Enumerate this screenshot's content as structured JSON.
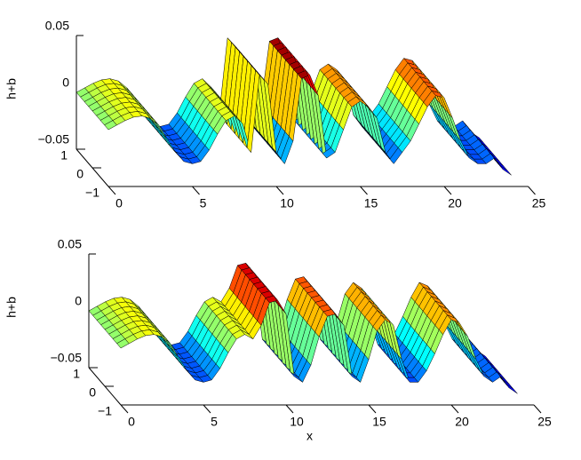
{
  "chart_data": [
    {
      "type": "surface",
      "zlabel": "h+b",
      "colormap": "jet",
      "x": [
        0,
        0.5,
        1,
        1.5,
        2,
        2.5,
        3,
        3.5,
        4,
        4.5,
        5,
        5.5,
        6,
        6.5,
        7,
        7.5,
        8,
        8.5,
        9,
        9.5,
        10,
        10.5,
        11,
        11.5,
        12,
        12.5,
        13,
        13.5,
        14,
        14.5,
        15,
        15.5,
        16,
        16.5,
        17,
        17.5,
        18,
        18.5,
        19,
        19.5,
        20,
        20.5,
        21,
        21.5,
        22,
        22.5,
        23,
        23.5,
        24
      ],
      "values": [
        0,
        0.004,
        0.008,
        0.011,
        0.012,
        0.01,
        0.004,
        -0.008,
        -0.02,
        -0.028,
        -0.03,
        -0.028,
        -0.018,
        -0.004,
        0.008,
        0.012,
        0.005,
        -0.02,
        0.048,
        0.04,
        -0.02,
        -0.03,
        -0.01,
        0.045,
        0.048,
        0.03,
        -0.025,
        -0.02,
        0,
        0.02,
        0.025,
        0.02,
        0.01,
        -0.02,
        -0.03,
        -0.02,
        -0.01,
        0.005,
        0.02,
        0.03,
        0.028,
        0.01,
        -0.01,
        -0.025,
        -0.03,
        -0.03,
        -0.025,
        -0.035,
        -0.04
      ],
      "xlim": [
        0,
        25
      ],
      "ylim": [
        -1,
        1
      ],
      "zlim": [
        -0.05,
        0.05
      ],
      "xticks": [
        0,
        5,
        10,
        15,
        20,
        25
      ],
      "yticks": [
        {
          "value": -1,
          "label": "−1"
        },
        0,
        1
      ],
      "zticks": [
        {
          "value": -0.05,
          "label": "−0.05"
        },
        0,
        0.05
      ]
    },
    {
      "type": "surface",
      "zlabel": "h+b",
      "xlabel": "x",
      "colormap": "jet",
      "x": [
        0,
        0.5,
        1,
        1.5,
        2,
        2.5,
        3,
        3.5,
        4,
        4.5,
        5,
        5.5,
        6,
        6.5,
        7,
        7.5,
        8,
        8.5,
        9,
        9.5,
        10,
        10.5,
        11,
        11.5,
        12,
        12.5,
        13,
        13.5,
        14,
        14.5,
        15,
        15.5,
        16,
        16.5,
        17,
        17.5,
        18,
        18.5,
        19,
        19.5,
        20,
        20.5,
        21,
        21.5,
        22,
        22.5,
        23,
        23.5,
        24
      ],
      "values": [
        0,
        0.004,
        0.008,
        0.011,
        0.012,
        0.01,
        0.004,
        -0.008,
        -0.02,
        -0.028,
        -0.03,
        -0.028,
        -0.018,
        -0.004,
        0.008,
        0.012,
        0.008,
        0.02,
        0.04,
        0.042,
        0.03,
        -0.025,
        -0.03,
        -0.015,
        0.01,
        0.028,
        0.03,
        0.02,
        -0.025,
        -0.03,
        -0.01,
        0.015,
        0.025,
        0.02,
        -0.01,
        -0.03,
        -0.03,
        -0.02,
        -0.005,
        0.012,
        0.025,
        0.022,
        0.01,
        -0.01,
        -0.025,
        -0.03,
        -0.025,
        -0.035,
        -0.04
      ],
      "xlim": [
        0,
        25
      ],
      "ylim": [
        -1,
        1
      ],
      "zlim": [
        -0.05,
        0.05
      ],
      "xticks": [
        0,
        5,
        10,
        15,
        20,
        25
      ],
      "yticks": [
        {
          "value": -1,
          "label": "−1"
        },
        0,
        1
      ],
      "zticks": [
        {
          "value": -0.05,
          "label": "−0.05"
        },
        0,
        0.05
      ]
    }
  ]
}
